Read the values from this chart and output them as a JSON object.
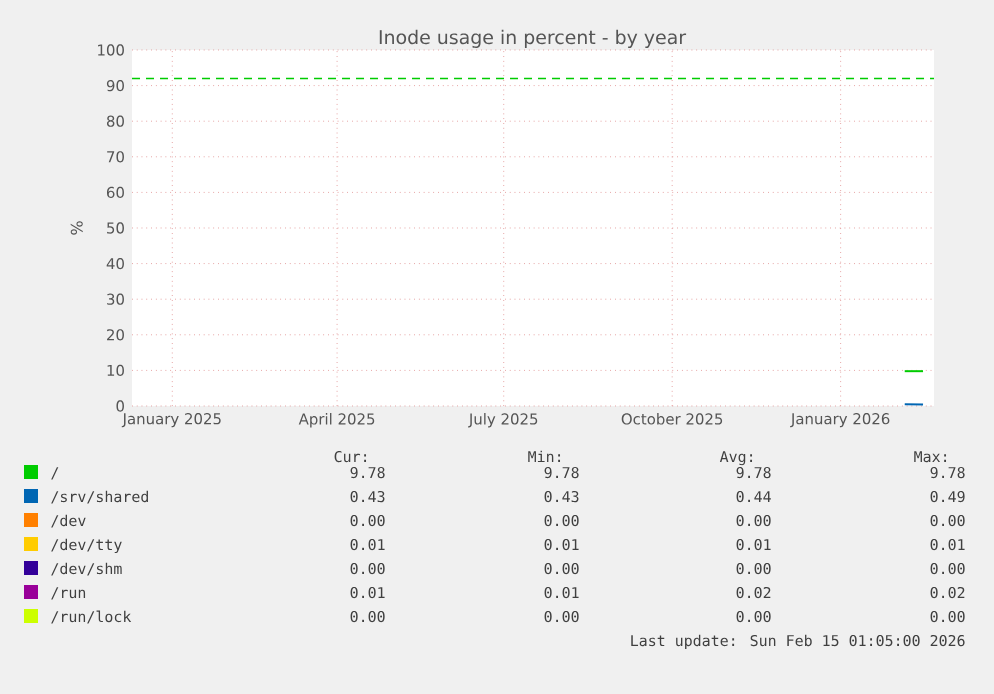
{
  "chart_data": {
    "type": "line",
    "title": "Inode usage in percent - by year",
    "ylabel": "%",
    "x": [
      "2026-02-05",
      "2026-02-15"
    ],
    "series": [
      {
        "name": "/",
        "color": "#00cc00",
        "values": [
          9.78,
          9.78
        ]
      },
      {
        "name": "/srv/shared",
        "color": "#0066b3",
        "values": [
          0.49,
          0.43
        ]
      },
      {
        "name": "/dev",
        "color": "#ff8000",
        "values": [
          null,
          null
        ]
      },
      {
        "name": "/dev/tty",
        "color": "#ffcc00",
        "values": [
          null,
          null
        ]
      },
      {
        "name": "/dev/shm",
        "color": "#330099",
        "values": [
          null,
          null
        ]
      },
      {
        "name": "/run",
        "color": "#990099",
        "values": [
          null,
          null
        ]
      },
      {
        "name": "/run/lock",
        "color": "#ccff00",
        "values": [
          null,
          null
        ]
      }
    ],
    "xlim": [
      "2024-12-10",
      "2026-02-21"
    ],
    "xticks": [
      {
        "value": "2025-01-01",
        "label": "January 2025"
      },
      {
        "value": "2025-04-01",
        "label": "April 2025"
      },
      {
        "value": "2025-07-01",
        "label": "July 2025"
      },
      {
        "value": "2025-10-01",
        "label": "October 2025"
      },
      {
        "value": "2026-01-01",
        "label": "January 2026"
      }
    ],
    "ylim": [
      0,
      100
    ],
    "yticks": [
      0,
      10,
      20,
      30,
      40,
      50,
      60,
      70,
      80,
      90,
      100
    ],
    "ref_lines": [
      {
        "axis": "y",
        "value": 92,
        "color": "#00cc00",
        "line_style": "dashed"
      }
    ],
    "grid": true,
    "legend": "bottom",
    "marker": "none",
    "line_style": "solid",
    "annotations": [
      "Cur:",
      "Min:",
      "Avg:",
      "Max:",
      "9.78",
      "9.78",
      "9.78",
      "9.78",
      "0.43",
      "0.43",
      "0.44",
      "0.49",
      "0.00",
      "0.00",
      "0.00",
      "0.00",
      "0.01",
      "0.01",
      "0.01",
      "0.01",
      "0.00",
      "0.00",
      "0.00",
      "0.00",
      "0.01",
      "0.01",
      "0.02",
      "0.02",
      "0.00",
      "0.00",
      "0.00",
      "0.00",
      "Last update: Sun Feb 15 01:05:00 2026"
    ]
  }
}
